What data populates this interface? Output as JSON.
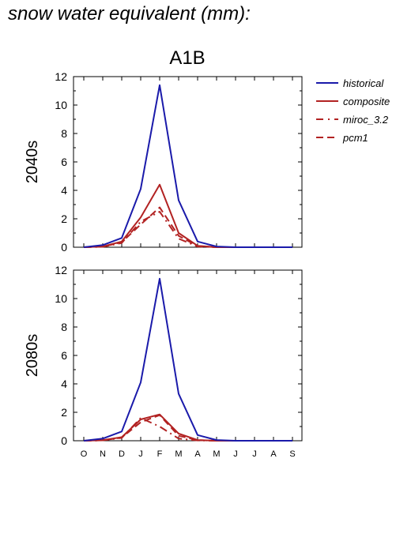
{
  "page": {
    "title": "snow water equivalent (mm):"
  },
  "colors": {
    "historical": "#1a1aaa",
    "future": "#b22222",
    "axis": "#000000"
  },
  "chart_data": {
    "type": "line",
    "title": "A1B",
    "categories": [
      "O",
      "N",
      "D",
      "J",
      "F",
      "M",
      "A",
      "M",
      "J",
      "J",
      "A",
      "S"
    ],
    "ylim": [
      0,
      12
    ],
    "yticks": [
      0,
      2,
      4,
      6,
      8,
      10,
      12
    ],
    "legend": {
      "placement": "top-right",
      "entries": [
        {
          "name": "historical",
          "color": "#1a1aaa",
          "dash": "solid"
        },
        {
          "name": "composite",
          "color": "#b22222",
          "dash": "solid"
        },
        {
          "name": "miroc_3.2",
          "color": "#b22222",
          "dash": "dashdot"
        },
        {
          "name": "pcm1",
          "color": "#b22222",
          "dash": "dash"
        }
      ]
    },
    "panels": [
      {
        "label": "2040s",
        "series": [
          {
            "name": "historical",
            "values": [
              0,
              0.15,
              0.65,
              4.1,
              11.4,
              3.3,
              0.4,
              0.05,
              0,
              0,
              0,
              0
            ]
          },
          {
            "name": "composite",
            "values": [
              0,
              0.05,
              0.4,
              2.1,
              4.4,
              1.0,
              0.1,
              0,
              0,
              0,
              0,
              0
            ]
          },
          {
            "name": "miroc_3.2",
            "values": [
              0,
              0.03,
              0.3,
              1.8,
              2.5,
              0.6,
              0.05,
              0,
              0,
              0,
              0,
              0
            ]
          },
          {
            "name": "pcm1",
            "values": [
              0,
              0.04,
              0.35,
              1.6,
              2.8,
              0.8,
              0.08,
              0,
              0,
              0,
              0,
              0
            ]
          }
        ]
      },
      {
        "label": "2080s",
        "series": [
          {
            "name": "historical",
            "values": [
              0,
              0.15,
              0.65,
              4.1,
              11.4,
              3.3,
              0.4,
              0.05,
              0,
              0,
              0,
              0
            ]
          },
          {
            "name": "composite",
            "values": [
              0,
              0.04,
              0.25,
              1.5,
              1.85,
              0.5,
              0.05,
              0,
              0,
              0,
              0,
              0
            ]
          },
          {
            "name": "miroc_3.2",
            "values": [
              0,
              0.03,
              0.2,
              1.6,
              1.0,
              0.15,
              0.02,
              0,
              0,
              0,
              0,
              0
            ]
          },
          {
            "name": "pcm1",
            "values": [
              0,
              0.03,
              0.22,
              1.3,
              1.8,
              0.35,
              0.04,
              0,
              0,
              0,
              0,
              0
            ]
          }
        ]
      }
    ]
  }
}
